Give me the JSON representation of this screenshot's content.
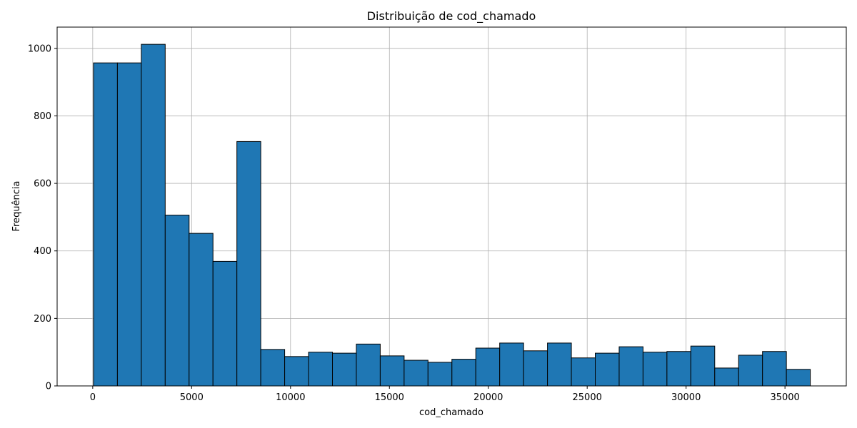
{
  "chart_data": {
    "type": "bar",
    "title": "Distribuição de cod_chamado",
    "xlabel": "cod_chamado",
    "ylabel": "Frequência",
    "xlim": [
      -1800,
      38100
    ],
    "ylim": [
      0,
      1063
    ],
    "xticks": [
      0,
      5000,
      10000,
      15000,
      20000,
      25000,
      30000,
      35000
    ],
    "yticks": [
      0,
      200,
      400,
      600,
      800,
      1000
    ],
    "grid": true,
    "bar_color": "#1f77b4",
    "edge_color": "#000000",
    "bins": [
      {
        "start": 40,
        "end": 1248,
        "value": 957
      },
      {
        "start": 1248,
        "end": 2456,
        "value": 957
      },
      {
        "start": 2456,
        "end": 3664,
        "value": 1012
      },
      {
        "start": 3664,
        "end": 4872,
        "value": 506
      },
      {
        "start": 4872,
        "end": 6080,
        "value": 452
      },
      {
        "start": 6080,
        "end": 7288,
        "value": 369
      },
      {
        "start": 7288,
        "end": 8496,
        "value": 724
      },
      {
        "start": 8496,
        "end": 9704,
        "value": 108
      },
      {
        "start": 9704,
        "end": 10912,
        "value": 87
      },
      {
        "start": 10912,
        "end": 12120,
        "value": 100
      },
      {
        "start": 12120,
        "end": 13328,
        "value": 97
      },
      {
        "start": 13328,
        "end": 14536,
        "value": 124
      },
      {
        "start": 14536,
        "end": 15744,
        "value": 89
      },
      {
        "start": 15744,
        "end": 16952,
        "value": 76
      },
      {
        "start": 16952,
        "end": 18160,
        "value": 70
      },
      {
        "start": 18160,
        "end": 19368,
        "value": 79
      },
      {
        "start": 19368,
        "end": 20576,
        "value": 112
      },
      {
        "start": 20576,
        "end": 21784,
        "value": 127
      },
      {
        "start": 21784,
        "end": 22992,
        "value": 104
      },
      {
        "start": 22992,
        "end": 24200,
        "value": 127
      },
      {
        "start": 24200,
        "end": 25408,
        "value": 83
      },
      {
        "start": 25408,
        "end": 26616,
        "value": 97
      },
      {
        "start": 26616,
        "end": 27824,
        "value": 116
      },
      {
        "start": 27824,
        "end": 29032,
        "value": 100
      },
      {
        "start": 29032,
        "end": 30240,
        "value": 102
      },
      {
        "start": 30240,
        "end": 31448,
        "value": 118
      },
      {
        "start": 31448,
        "end": 32656,
        "value": 53
      },
      {
        "start": 32656,
        "end": 33864,
        "value": 91
      },
      {
        "start": 33864,
        "end": 35072,
        "value": 102
      },
      {
        "start": 35072,
        "end": 36280,
        "value": 49
      }
    ]
  }
}
